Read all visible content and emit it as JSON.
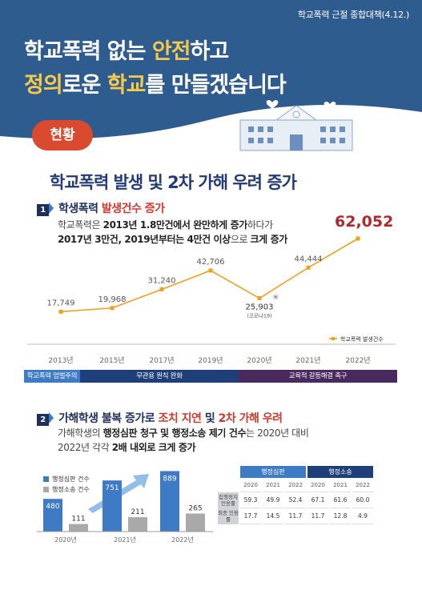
{
  "header": {
    "policy_tag": "학교폭력 근절 종합대책(4.12.)",
    "line1_a": "학교폭력 없는 ",
    "line1_b": "안전",
    "line1_c": "하고",
    "line2_a": "정의",
    "line2_b": "로운 ",
    "line2_c": "학교",
    "line2_d": "를 만들겠습니다"
  },
  "status_label": "현황",
  "main_title": "학교폭력 발생 및 2차 가해 우려 증가",
  "section1": {
    "number": "1",
    "heading_a": "학생폭력 ",
    "heading_b": "발생건수 증가",
    "text1_a": "학교폭력은 ",
    "text1_b": "2013년 1.8만건에서 완만하게 증가",
    "text1_c": "하다가",
    "text2_a": "2017년 3만건, 2019년부터는 4만건 이상",
    "text2_b": "으로 ",
    "text2_c": "크게 증가",
    "highlight_value": "62,052"
  },
  "section2": {
    "number": "2",
    "heading_a": "가해학생 불복 증가로 ",
    "heading_b": "조치 지연",
    "heading_c": " 및 ",
    "heading_d": "2차 가해 우려",
    "text1_a": "가해학생의 ",
    "text1_b": "행정심판 청구 및 행정소송 제기 건수",
    "text1_c": "는 2020년 대비",
    "text2_a": "2022년 각각 ",
    "text2_b": "2배 내외로 크게 증가"
  },
  "phases": [
    {
      "label": "학교폭력 엄벌주의 강화",
      "color": "#3e7bc4"
    },
    {
      "label": "무관용 원칙 완화",
      "color": "#1f3f78"
    },
    {
      "label": "교육적 갈등해결 촉구",
      "color": "#4a2a5e"
    }
  ],
  "table": {
    "group1": "행정심판",
    "group2": "행정소송",
    "years": [
      "2020",
      "2021",
      "2022",
      "2020",
      "2021",
      "2022"
    ],
    "row1_label": "집행정지 인용률",
    "row1": [
      "59.3",
      "49.9",
      "52.4",
      "67.1",
      "61.6",
      "60.0"
    ],
    "row2_label": "최종 인용률",
    "row2": [
      "17.7",
      "14.5",
      "11.7",
      "11.7",
      "12.8",
      "4.9"
    ]
  },
  "chart_data": [
    {
      "type": "line",
      "categories": [
        "2013년",
        "2015년",
        "2017년",
        "2019년",
        "2020년",
        "2021년",
        "2022년"
      ],
      "series": [
        {
          "name": "학교폭력 발생건수",
          "values": [
            17749,
            19968,
            31240,
            42706,
            25903,
            44444,
            62052
          ]
        }
      ],
      "value_labels": [
        "17,749",
        "19,968",
        "31,240",
        "42,706",
        "25,903",
        "44,444",
        "62,052"
      ],
      "annotation": "(코로나19)",
      "color": "#f0a020",
      "ylim": [
        0,
        65000
      ]
    },
    {
      "type": "bar",
      "categories": [
        "2020년",
        "2021년",
        "2022년"
      ],
      "series": [
        {
          "name": "행정심판 건수",
          "values": [
            480,
            751,
            889
          ],
          "color": "#3e7bc4"
        },
        {
          "name": "행정소송 건수",
          "values": [
            111,
            211,
            265
          ],
          "color": "#a9a9a9"
        }
      ],
      "ylim": [
        0,
        1000
      ]
    }
  ]
}
